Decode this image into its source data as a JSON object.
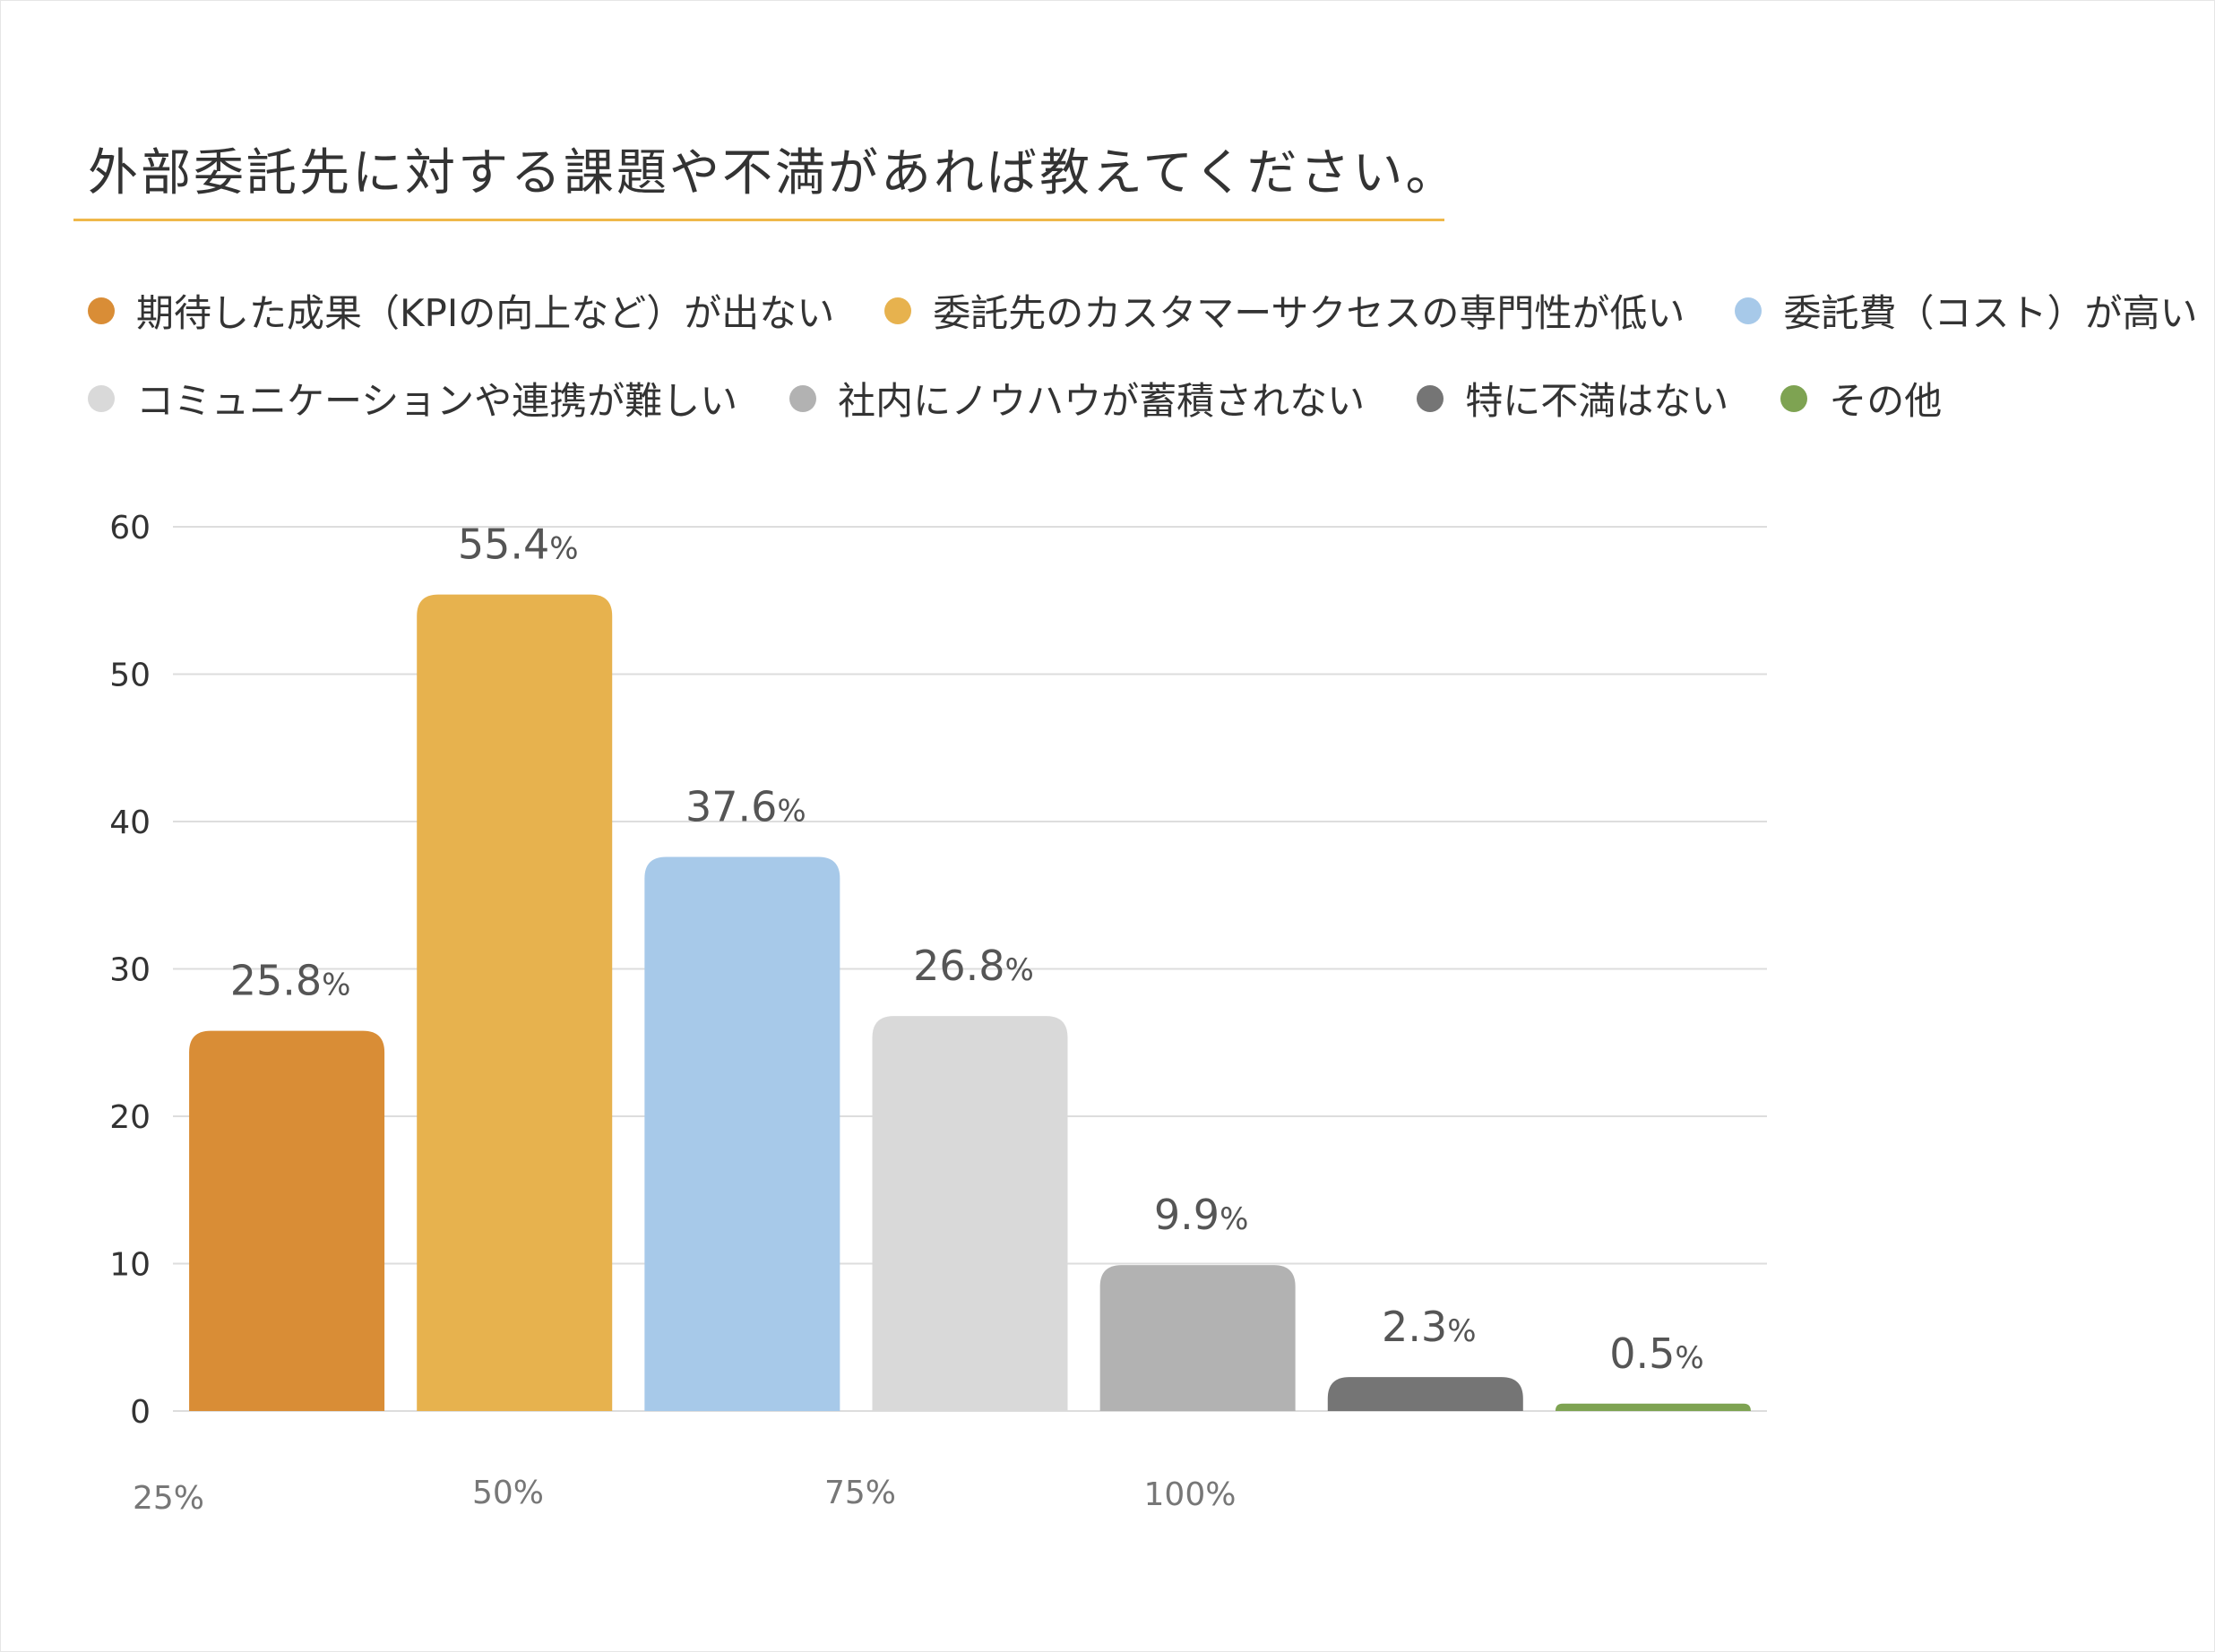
{
  "title": "外部委託先に対する課題や不満があれば教えてください。",
  "colors": {
    "title_rule": "#efb84a",
    "gridline": "#dddddd"
  },
  "legend": [
    {
      "label": "期待した成果（KPIの向上など）が出ない",
      "color": "#d98d36"
    },
    {
      "label": "委託先のカスタマーサクセスの専門性が低い",
      "color": "#e7b24e"
    },
    {
      "label": "委託費（コスト）が高い",
      "color": "#a7c9e9"
    },
    {
      "label": "コミュニケーションや連携が難しい",
      "color": "#d9d9d9"
    },
    {
      "label": "社内にノウハウが蓄積されない",
      "color": "#b2b2b2"
    },
    {
      "label": "特に不満はない",
      "color": "#757575"
    },
    {
      "label": "その他",
      "color": "#7ea352"
    }
  ],
  "chart_data": {
    "type": "bar",
    "title": "外部委託先に対する課題や不満があれば教えてください。",
    "categories": [
      "期待した成果（KPIの向上など）が出ない",
      "委託先のカスタマーサクセスの専門性が低い",
      "委託費（コスト）が高い",
      "コミュニケーションや連携が難しい",
      "社内にノウハウが蓄積されない",
      "特に不満はない",
      "その他"
    ],
    "values": [
      25.8,
      55.4,
      37.6,
      26.8,
      9.9,
      2.3,
      0.5
    ],
    "data_labels": [
      "25.8",
      "55.4",
      "37.6",
      "26.8",
      "9.9",
      "2.3",
      "0.5"
    ],
    "data_label_unit": "%",
    "colors": [
      "#d98d36",
      "#e7b24e",
      "#a7c9e9",
      "#d9d9d9",
      "#b2b2b2",
      "#757575",
      "#7ea352"
    ],
    "ylim": [
      0,
      60
    ],
    "yticks": [
      "0",
      "10",
      "20",
      "30",
      "40",
      "50",
      "60"
    ],
    "bottom_axis_labels": [
      "25%",
      "50%",
      "75%",
      "100%"
    ],
    "grid": true,
    "legend_position": "top",
    "xlabel": "",
    "ylabel": ""
  }
}
